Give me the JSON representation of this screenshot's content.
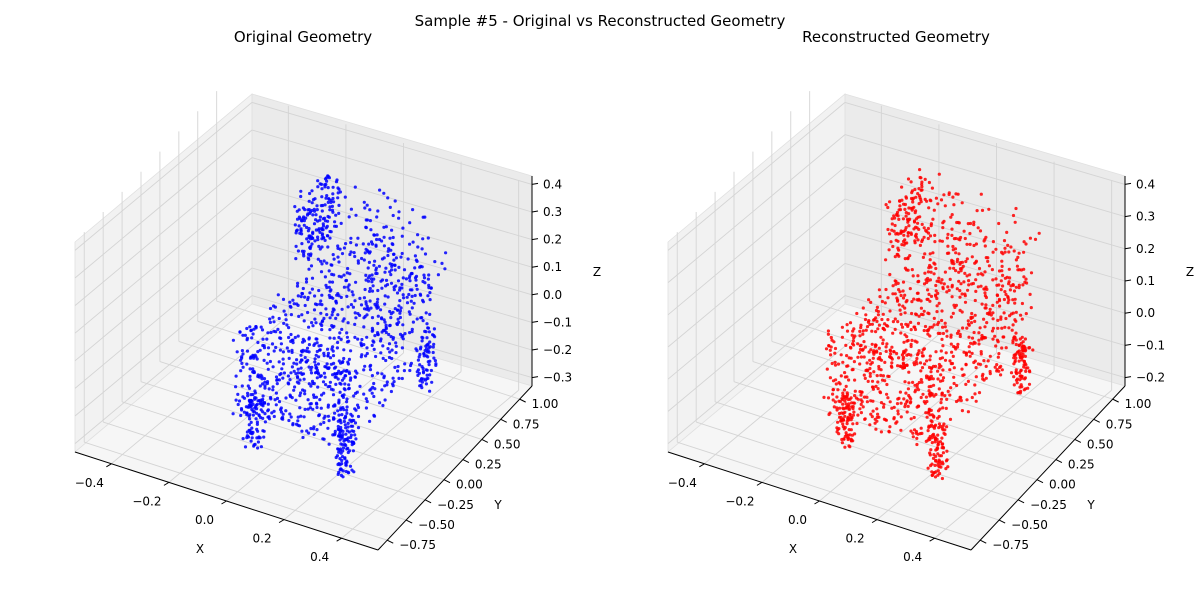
{
  "suptitle": "Sample #5 - Original vs Reconstructed Geometry",
  "chart_data": [
    {
      "type": "scatter",
      "title": "Original Geometry",
      "xlabel": "X",
      "ylabel": "Y",
      "zlabel": "Z",
      "xticks": [
        "−0.4",
        "−0.2",
        "0.0",
        "0.2",
        "0.4"
      ],
      "yticks": [
        "−0.75",
        "−0.50",
        "−0.25",
        "0.00",
        "0.25",
        "0.50",
        "0.75",
        "1.00"
      ],
      "zticks": [
        "−0.3",
        "−0.2",
        "−0.1",
        "0.0",
        "0.1",
        "0.2",
        "0.3",
        "0.4"
      ],
      "xlim": [
        -0.5,
        0.5
      ],
      "ylim": [
        -0.8,
        1.05
      ],
      "zlim": [
        -0.3,
        0.4
      ],
      "grid": true,
      "projection": "3d",
      "series": [
        {
          "color": "#0000ff",
          "shape": "chair-like point cloud: seat block with raised backrest rim and front legs",
          "extent": {
            "x": [
              -0.45,
              0.45
            ],
            "y": [
              -0.55,
              0.95
            ],
            "z": [
              -0.3,
              0.3
            ]
          }
        }
      ]
    },
    {
      "type": "scatter",
      "title": "Reconstructed Geometry",
      "xlabel": "X",
      "ylabel": "Y",
      "zlabel": "Z",
      "xticks": [
        "−0.4",
        "−0.2",
        "0.0",
        "0.2",
        "0.4"
      ],
      "yticks": [
        "−0.75",
        "−0.50",
        "−0.25",
        "0.00",
        "0.25",
        "0.50",
        "0.75",
        "1.00"
      ],
      "zticks": [
        "−0.2",
        "−0.1",
        "0.0",
        "0.1",
        "0.2",
        "0.3",
        "0.4"
      ],
      "xlim": [
        -0.5,
        0.5
      ],
      "ylim": [
        -0.8,
        1.05
      ],
      "zlim": [
        -0.25,
        0.42
      ],
      "grid": true,
      "projection": "3d",
      "series": [
        {
          "color": "#ff0000",
          "shape": "reconstructed chair-like point cloud, clustered along edges and legs",
          "extent": {
            "x": [
              -0.45,
              0.45
            ],
            "y": [
              -0.55,
              0.95
            ],
            "z": [
              -0.25,
              0.35
            ]
          }
        }
      ]
    }
  ]
}
